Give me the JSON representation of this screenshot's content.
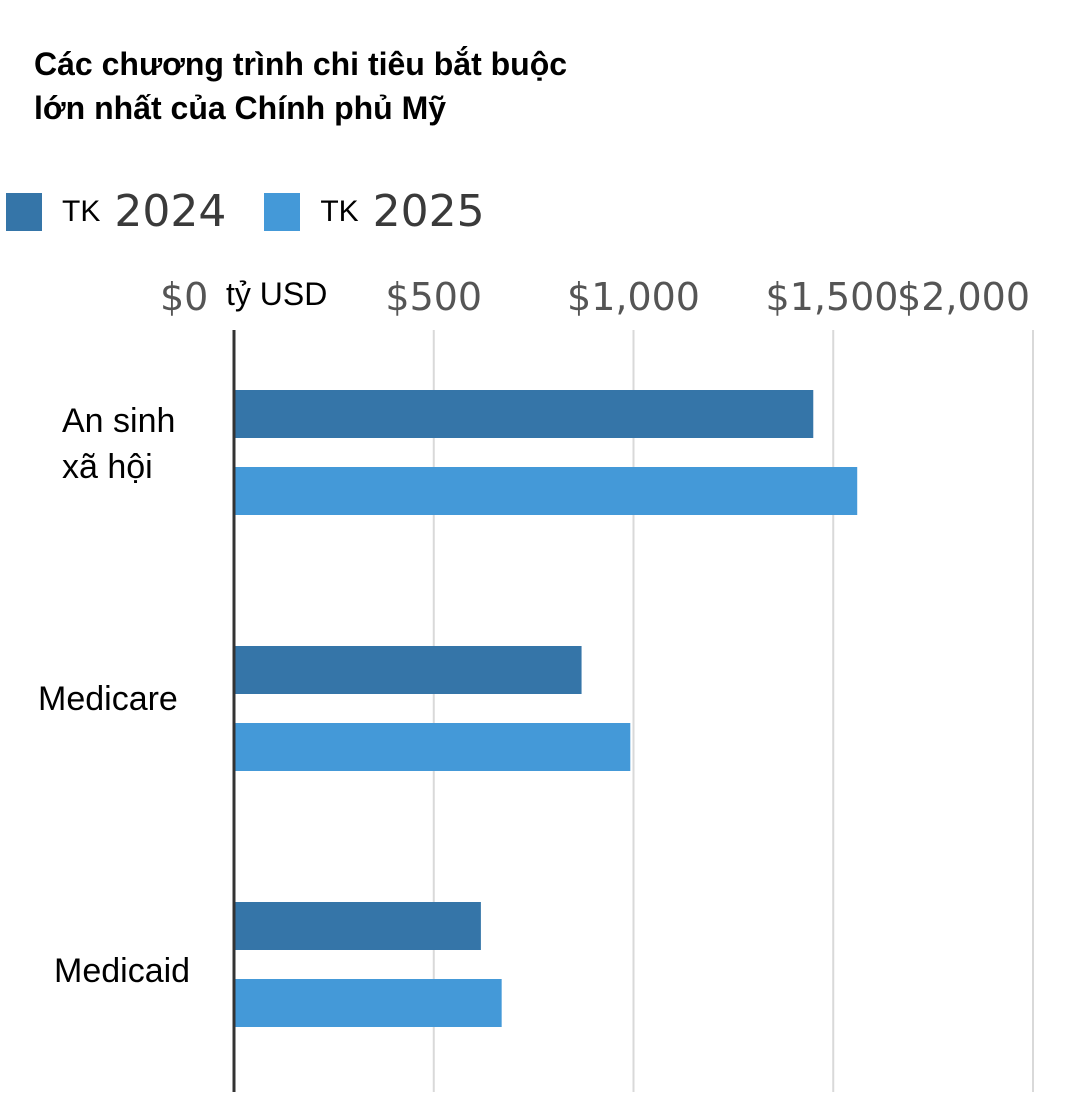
{
  "title_lines": [
    "Các chương trình chi tiêu bắt buộc",
    "lớn nhất của Chính phủ Mỹ"
  ],
  "legend": [
    {
      "prefix": "TK",
      "year": "2024",
      "color": "#3575a8"
    },
    {
      "prefix": "TK",
      "year": "2025",
      "color": "#4499d8"
    }
  ],
  "unit_label": "tỷ USD",
  "chart_data": {
    "type": "bar",
    "orientation": "horizontal",
    "title": "Các chương trình chi tiêu bắt buộc lớn nhất của Chính phủ Mỹ",
    "xlabel": "tỷ USD",
    "categories": [
      [
        "An sinh",
        "xã hội"
      ],
      [
        "Medicare"
      ],
      [
        "Medicaid"
      ]
    ],
    "series": [
      {
        "name": "TK 2024",
        "values": [
          1450,
          870,
          618
        ],
        "color": "#3575a8"
      },
      {
        "name": "TK 2025",
        "values": [
          1560,
          992,
          670
        ],
        "color": "#4499d8"
      }
    ],
    "xlim": [
      0,
      2000
    ],
    "ticks": [
      0,
      500,
      1000,
      1500,
      2000
    ],
    "tick_labels": [
      "$0",
      "$500",
      "$1,000",
      "$1,500",
      "$2,000"
    ],
    "grid": true,
    "legend_position": "top-left",
    "axis_position": "top"
  }
}
